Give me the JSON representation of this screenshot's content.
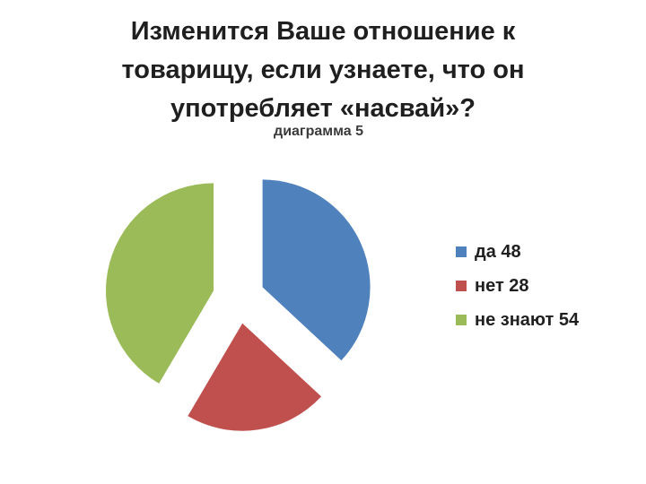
{
  "slide": {
    "title_lines": [
      "Изменится Ваше отношение к",
      "товарищу, если  узнаете, что он",
      "употребляет «насвай»?"
    ]
  },
  "chart_data": {
    "type": "pie",
    "title": "диаграмма 5",
    "legend_position": "right",
    "exploded": true,
    "slices": [
      {
        "label": "да",
        "value": 48,
        "color": "#4f81bd",
        "legend_text": "да 48"
      },
      {
        "label": "нет",
        "value": 28,
        "color": "#c0504d",
        "legend_text": "нет 28"
      },
      {
        "label": "не знают",
        "value": 54,
        "color": "#9bbb59",
        "legend_text": "не знают 54"
      }
    ]
  }
}
